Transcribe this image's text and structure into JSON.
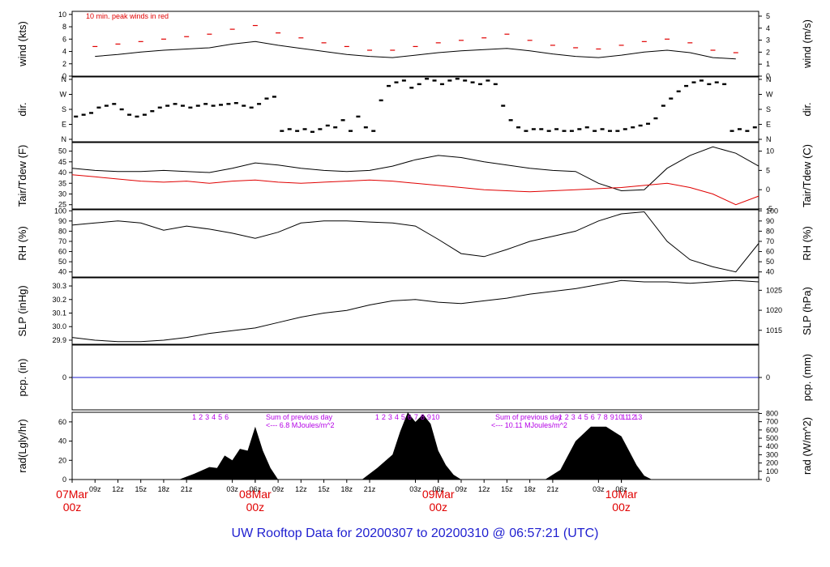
{
  "footer": "UW Rooftop Data for 20200307  to  20200310 @ 06:57:21  (UTC)",
  "colors": {
    "main": "#000000",
    "peak": "#e00000",
    "dew": "#e00000",
    "pcp": "#1f1fd0",
    "annot": "#b400e6",
    "date": "#e00000",
    "footer": "#1f1fd0"
  },
  "chart_data": [
    {
      "type": "line",
      "id": "wind",
      "ylabel_left": "wind (kts)",
      "ylabel_right": "wind (m/s)",
      "left_ticks": [
        "0",
        "2",
        "4",
        "6",
        "8",
        "10"
      ],
      "right_ticks": [
        "0",
        "1",
        "2",
        "3",
        "4",
        "5"
      ],
      "ylim": [
        0,
        10.5
      ],
      "annotation": "10 min. peak winds in red",
      "series": [
        {
          "name": "wind",
          "x": [
            3,
            6,
            9,
            12,
            15,
            18,
            21,
            24,
            27,
            30,
            33,
            36,
            39,
            42,
            45,
            48,
            51,
            54,
            57,
            60,
            63,
            66,
            69,
            72,
            75,
            78,
            81,
            84,
            87
          ],
          "values": [
            3.2,
            3.5,
            3.9,
            4.2,
            4.4,
            4.6,
            5.2,
            5.6,
            5.0,
            4.5,
            4.0,
            3.5,
            3.2,
            3.0,
            3.4,
            3.8,
            4.1,
            4.3,
            4.5,
            4.1,
            3.6,
            3.2,
            3.0,
            3.4,
            3.9,
            4.2,
            3.8,
            3.0,
            2.8
          ]
        },
        {
          "name": "10 min. peak winds",
          "x": [
            3,
            6,
            9,
            12,
            15,
            18,
            21,
            24,
            27,
            30,
            33,
            36,
            39,
            42,
            45,
            48,
            51,
            54,
            57,
            60,
            63,
            66,
            69,
            72,
            75,
            78,
            81,
            84,
            87
          ],
          "values": [
            4.8,
            5.2,
            5.6,
            6.0,
            6.4,
            6.8,
            7.6,
            8.2,
            7.0,
            6.2,
            5.4,
            4.8,
            4.2,
            4.2,
            4.8,
            5.4,
            5.8,
            6.2,
            6.8,
            5.8,
            5.0,
            4.6,
            4.4,
            5.0,
            5.6,
            6.0,
            5.4,
            4.2,
            3.8
          ]
        }
      ]
    },
    {
      "type": "scatter",
      "id": "dir",
      "ylabel_left": "dir.",
      "ylabel_right": "dir.",
      "left_ticks": [
        "N",
        "E",
        "S",
        "W",
        "N"
      ],
      "right_ticks": [
        "N",
        "E",
        "S",
        "W",
        "N"
      ],
      "ylim": [
        0,
        360
      ],
      "series": [
        {
          "name": "direction",
          "x": [
            0.5,
            1.5,
            2.5,
            3.5,
            4.5,
            5.5,
            6.5,
            7.5,
            8.5,
            9.5,
            10.5,
            11.5,
            12.5,
            13.5,
            14.5,
            15.5,
            16.5,
            17.5,
            18.5,
            19.5,
            20.5,
            21.5,
            22.5,
            23.5,
            24.5,
            25.5,
            26.5,
            27.5,
            28.5,
            29.5,
            30.5,
            31.5,
            32.5,
            33.5,
            34.5,
            35.5,
            36.5,
            37.5,
            38.5,
            39.5,
            40.5,
            41.5,
            42.5,
            43.5,
            44.5,
            45.5,
            46.5,
            47.5,
            48.5,
            49.5,
            50.5,
            51.5,
            52.5,
            53.5,
            54.5,
            55.5,
            56.5,
            57.5,
            58.5,
            59.5,
            60.5,
            61.5,
            62.5,
            63.5,
            64.5,
            65.5,
            66.5,
            67.5,
            68.5,
            69.5,
            70.5,
            71.5,
            72.5,
            73.5,
            74.5,
            75.5,
            76.5,
            77.5,
            78.5,
            79.5,
            80.5,
            81.5,
            82.5,
            83.5,
            84.5,
            85.5,
            86.5,
            87.5,
            88.5,
            89.5
          ],
          "values": [
            140,
            150,
            160,
            190,
            200,
            210,
            180,
            150,
            140,
            150,
            170,
            190,
            200,
            210,
            200,
            190,
            200,
            210,
            200,
            205,
            210,
            215,
            200,
            190,
            210,
            240,
            250,
            60,
            70,
            60,
            70,
            55,
            70,
            90,
            80,
            120,
            60,
            140,
            80,
            60,
            230,
            310,
            330,
            340,
            300,
            320,
            350,
            340,
            320,
            340,
            350,
            340,
            330,
            320,
            340,
            320,
            200,
            120,
            80,
            60,
            70,
            70,
            60,
            70,
            60,
            60,
            70,
            80,
            60,
            70,
            60,
            60,
            70,
            80,
            90,
            100,
            130,
            200,
            240,
            280,
            310,
            330,
            340,
            320,
            330,
            320,
            60,
            70,
            60,
            80
          ]
        }
      ]
    },
    {
      "type": "line",
      "id": "temp",
      "ylabel_left": "Tair/Tdew (F)",
      "ylabel_right": "Tair/Tdew (C)",
      "left_ticks": [
        "25",
        "30",
        "35",
        "40",
        "45",
        "50"
      ],
      "right_ticks": [
        "-5",
        "0",
        "5",
        "10"
      ],
      "ylim": [
        23,
        54
      ],
      "series": [
        {
          "name": "Tair",
          "x": [
            0,
            3,
            6,
            9,
            12,
            15,
            18,
            21,
            24,
            27,
            30,
            33,
            36,
            39,
            42,
            45,
            48,
            51,
            54,
            57,
            60,
            63,
            66,
            69,
            72,
            75,
            78,
            81,
            84,
            87,
            90
          ],
          "values": [
            42,
            41,
            40.5,
            40.5,
            41,
            40.5,
            40,
            42,
            44.5,
            43.5,
            42,
            41,
            40.5,
            41,
            43,
            46,
            48,
            47,
            45,
            43.5,
            42,
            41,
            40.5,
            35,
            31.5,
            32,
            42,
            48,
            52,
            49,
            43
          ]
        },
        {
          "name": "Tdew",
          "x": [
            0,
            3,
            6,
            9,
            12,
            15,
            18,
            21,
            24,
            27,
            30,
            33,
            36,
            39,
            42,
            45,
            48,
            51,
            54,
            57,
            60,
            63,
            66,
            69,
            72,
            75,
            78,
            81,
            84,
            87,
            90
          ],
          "values": [
            39,
            38,
            37,
            36,
            35.5,
            36,
            35,
            36,
            36.5,
            35.5,
            35,
            35.5,
            36,
            36.5,
            36,
            35,
            34,
            33,
            32,
            31.5,
            31,
            31.5,
            32,
            32.5,
            33,
            34,
            35,
            33,
            30,
            25,
            29
          ]
        }
      ]
    },
    {
      "type": "line",
      "id": "rh",
      "ylabel_left": "RH (%)",
      "ylabel_right": "RH (%)",
      "left_ticks": [
        "40",
        "50",
        "60",
        "70",
        "80",
        "90",
        "100"
      ],
      "right_ticks": [
        "40",
        "50",
        "60",
        "70",
        "80",
        "90",
        "100"
      ],
      "ylim": [
        35,
        101
      ],
      "series": [
        {
          "name": "RH",
          "x": [
            0,
            3,
            6,
            9,
            12,
            15,
            18,
            21,
            24,
            27,
            30,
            33,
            36,
            39,
            42,
            45,
            48,
            51,
            54,
            57,
            60,
            63,
            66,
            69,
            72,
            75,
            78,
            81,
            84,
            87,
            90
          ],
          "values": [
            86,
            88,
            90,
            88,
            81,
            85,
            82,
            78,
            73,
            79,
            88,
            90,
            90,
            89,
            88,
            85,
            72,
            58,
            55,
            62,
            70,
            75,
            80,
            90,
            97,
            99,
            70,
            52,
            45,
            40,
            68
          ]
        }
      ]
    },
    {
      "type": "line",
      "id": "slp",
      "ylabel_left": "SLP (inHg)",
      "ylabel_right": "SLP (hPa)",
      "left_ticks": [
        "29.9",
        "30.0",
        "30.1",
        "30.2",
        "30.3"
      ],
      "right_ticks": [
        "1015",
        "1020",
        "1025"
      ],
      "ylim": [
        29.87,
        30.36
      ],
      "series": [
        {
          "name": "SLP",
          "x": [
            0,
            3,
            6,
            9,
            12,
            15,
            18,
            21,
            24,
            27,
            30,
            33,
            36,
            39,
            42,
            45,
            48,
            51,
            54,
            57,
            60,
            63,
            66,
            69,
            72,
            75,
            78,
            81,
            84,
            87,
            90
          ],
          "values": [
            29.92,
            29.9,
            29.89,
            29.89,
            29.9,
            29.92,
            29.95,
            29.97,
            29.99,
            30.03,
            30.07,
            30.1,
            30.12,
            30.16,
            30.19,
            30.2,
            30.18,
            30.17,
            30.19,
            30.21,
            30.24,
            30.26,
            30.28,
            30.31,
            30.34,
            30.33,
            30.33,
            30.32,
            30.33,
            30.34,
            30.33
          ]
        }
      ]
    },
    {
      "type": "line",
      "id": "pcp",
      "ylabel_left": "pcp. (in)",
      "ylabel_right": "pcp. (mm)",
      "left_ticks": [
        "0"
      ],
      "right_ticks": [
        "0"
      ],
      "ylim": [
        -1,
        1
      ],
      "series": [
        {
          "name": "precipitation",
          "x": [
            0,
            90
          ],
          "values": [
            0,
            0
          ]
        }
      ]
    },
    {
      "type": "area",
      "id": "rad",
      "ylabel_left": "rad(Lgly/hr)",
      "ylabel_right": "rad (W/m^2)",
      "left_ticks": [
        "0",
        "20",
        "40",
        "60"
      ],
      "right_ticks": [
        "0",
        "100",
        "200",
        "300",
        "400",
        "500",
        "600",
        "700",
        "800"
      ],
      "ylim": [
        0,
        70
      ],
      "series": [
        {
          "name": "radiation",
          "x": [
            14,
            16,
            18,
            19,
            20,
            21,
            22,
            23,
            24,
            25,
            26,
            27,
            38,
            40,
            42,
            43,
            44,
            45,
            46,
            47,
            48,
            49,
            50,
            51,
            62,
            64,
            66,
            68,
            70,
            72,
            73,
            74,
            75,
            76
          ],
          "values": [
            0,
            6,
            13,
            12,
            25,
            20,
            32,
            30,
            55,
            30,
            12,
            0,
            0,
            12,
            26,
            50,
            70,
            60,
            68,
            58,
            30,
            15,
            5,
            0,
            0,
            10,
            40,
            55,
            55,
            45,
            30,
            15,
            4,
            0
          ]
        }
      ],
      "hour_labels_day1": [
        "1",
        "2",
        "3",
        "4",
        "5",
        "6"
      ],
      "hour_labels_day2": [
        "1",
        "2",
        "3",
        "4",
        "5",
        "6",
        "7",
        "8",
        "9",
        "10"
      ],
      "hour_labels_day3": [
        "1",
        "2",
        "3",
        "4",
        "5",
        "6",
        "7",
        "8",
        "9",
        "10",
        "11",
        "12",
        "13"
      ],
      "sum_label": "Sum of previous day",
      "sum_day2": "<--- 6.8  MJoules/m^2",
      "sum_day3": "<--- 10.11  MJoules/m^2"
    }
  ],
  "x_axis": {
    "ticks": [
      "09z",
      "12z",
      "15z",
      "18z",
      "21z",
      "03z",
      "06z",
      "09z",
      "12z",
      "15z",
      "18z",
      "21z",
      "03z",
      "06z",
      "09z",
      "12z",
      "15z",
      "18z",
      "21z",
      "03z",
      "06z"
    ],
    "dates": [
      {
        "label": "07Mar",
        "hour": "00z"
      },
      {
        "label": "08Mar",
        "hour": "00z"
      },
      {
        "label": "09Mar",
        "hour": "00z"
      },
      {
        "label": "10Mar",
        "hour": "00z"
      }
    ]
  }
}
